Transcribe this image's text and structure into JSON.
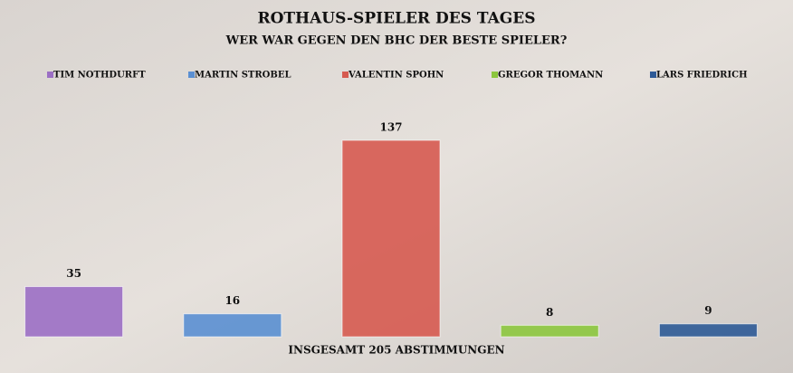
{
  "chart_data": {
    "type": "bar",
    "title": "ROTHAUS-SPIELER DES TAGES",
    "subtitle": "WER WAR GEGEN DEN BHC DER BESTE SPIELER?",
    "footer": "INSGESAMT 205 ABSTIMMUNGEN",
    "series": [
      {
        "name": "TIM NOTHDURFT",
        "color": "#9b6fc4",
        "values": [
          35
        ]
      },
      {
        "name": "MARTIN STROBEL",
        "color": "#5a8fd2",
        "values": [
          16
        ]
      },
      {
        "name": "VALENTIN SPOHN",
        "color": "#d65a50",
        "values": [
          137
        ]
      },
      {
        "name": "GREGOR THOMANN",
        "color": "#8cc63e",
        "values": [
          8
        ]
      },
      {
        "name": "LARS FRIEDRICH",
        "color": "#2e5a96",
        "values": [
          9
        ]
      }
    ]
  }
}
